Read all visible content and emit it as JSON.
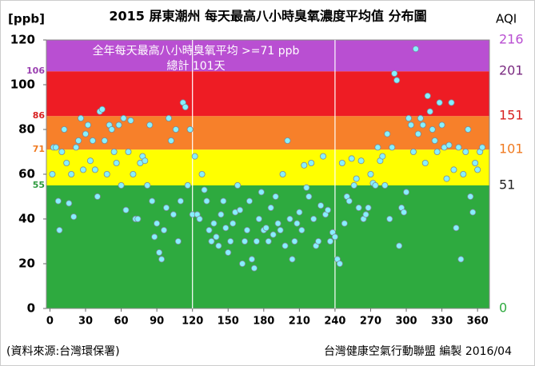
{
  "chart_data": {
    "type": "scatter",
    "title": "2015 屏東潮州 每天最高八小時臭氧濃度平均值 分布圖",
    "y_label": "[ppb]",
    "y2_label": "AQI",
    "annotation": [
      "全年每天最高八小時臭氧平均 >=71 ppb",
      "總計 101天"
    ],
    "source": "(資料來源:台灣環保署)",
    "credit": "台灣健康空氣行動聯盟 編製  2016/04",
    "xlim": [
      -3,
      370
    ],
    "xticks": [
      0,
      30,
      60,
      90,
      120,
      150,
      180,
      210,
      240,
      270,
      300,
      330,
      360
    ],
    "ylim": [
      0,
      120
    ],
    "yticks": [
      0,
      20,
      40,
      60,
      80,
      100,
      120
    ],
    "vlines": [
      120,
      240
    ],
    "bands": [
      {
        "range": [
          0,
          55
        ],
        "color": "#2eaa3f"
      },
      {
        "range": [
          55,
          71
        ],
        "color": "#ffff00"
      },
      {
        "range": [
          71,
          86
        ],
        "color": "#f7802a"
      },
      {
        "range": [
          86,
          106
        ],
        "color": "#ee1c24"
      },
      {
        "range": [
          106,
          120
        ],
        "color": "#b94fd2"
      }
    ],
    "thresholds": [
      {
        "value": 55,
        "color": "#2e9a3f"
      },
      {
        "value": 71,
        "color": "#f07a20"
      },
      {
        "value": 86,
        "color": "#d82020"
      },
      {
        "value": 106,
        "color": "#9a3fb0"
      }
    ],
    "aqi_labels": [
      {
        "value": 0,
        "label": "0",
        "color": "#2eaa3f"
      },
      {
        "value": 55,
        "label": "51",
        "color": "#222222"
      },
      {
        "value": 71,
        "label": "101",
        "color": "#f07a20"
      },
      {
        "value": 86,
        "label": "151",
        "color": "#d82020"
      },
      {
        "value": 106,
        "label": "201",
        "color": "#7a2a80"
      },
      {
        "value": 120,
        "label": "216",
        "color": "#b94fd2"
      }
    ],
    "point_color": "#86f0ff",
    "x": [
      2,
      3,
      5,
      7,
      8,
      10,
      12,
      14,
      16,
      18,
      20,
      22,
      24,
      26,
      28,
      30,
      32,
      34,
      36,
      38,
      40,
      42,
      44,
      46,
      48,
      50,
      52,
      54,
      56,
      58,
      60,
      62,
      64,
      66,
      68,
      70,
      72,
      74,
      76,
      78,
      80,
      82,
      84,
      86,
      88,
      90,
      92,
      94,
      96,
      98,
      100,
      102,
      104,
      106,
      108,
      110,
      112,
      114,
      116,
      118,
      120,
      122,
      124,
      126,
      128,
      130,
      132,
      134,
      136,
      138,
      140,
      142,
      144,
      146,
      148,
      150,
      152,
      154,
      156,
      158,
      160,
      162,
      164,
      166,
      168,
      170,
      172,
      174,
      176,
      178,
      180,
      182,
      184,
      186,
      188,
      190,
      192,
      194,
      196,
      198,
      200,
      202,
      204,
      206,
      208,
      210,
      212,
      214,
      216,
      218,
      220,
      222,
      224,
      226,
      228,
      230,
      232,
      234,
      236,
      238,
      240,
      242,
      244,
      246,
      248,
      250,
      252,
      254,
      256,
      258,
      260,
      262,
      264,
      266,
      268,
      270,
      272,
      274,
      276,
      278,
      280,
      282,
      284,
      286,
      288,
      290,
      292,
      294,
      296,
      298,
      300,
      302,
      304,
      306,
      308,
      310,
      312,
      314,
      316,
      318,
      320,
      322,
      324,
      326,
      328,
      330,
      332,
      334,
      336,
      338,
      340,
      342,
      344,
      346,
      348,
      350,
      352,
      354,
      356,
      358,
      360,
      362,
      364
    ],
    "y": [
      60,
      72,
      72,
      48,
      35,
      70,
      80,
      65,
      47,
      60,
      41,
      72,
      75,
      85,
      62,
      78,
      82,
      66,
      75,
      62,
      50,
      88,
      89,
      75,
      60,
      82,
      80,
      70,
      65,
      82,
      55,
      85,
      44,
      70,
      84,
      60,
      40,
      40,
      65,
      68,
      66,
      55,
      82,
      48,
      32,
      38,
      25,
      22,
      35,
      45,
      85,
      75,
      42,
      80,
      30,
      48,
      92,
      90,
      55,
      80,
      42,
      68,
      42,
      40,
      60,
      53,
      48,
      35,
      30,
      38,
      32,
      28,
      42,
      48,
      36,
      25,
      30,
      38,
      43,
      55,
      44,
      20,
      30,
      35,
      48,
      22,
      18,
      30,
      40,
      52,
      35,
      36,
      30,
      45,
      33,
      50,
      38,
      35,
      60,
      28,
      75,
      40,
      22,
      30,
      38,
      43,
      35,
      64,
      54,
      50,
      65,
      40,
      28,
      30,
      46,
      68,
      42,
      44,
      30,
      34,
      32,
      22,
      20,
      65,
      38,
      50,
      48,
      67,
      55,
      58,
      45,
      66,
      40,
      42,
      45,
      60,
      56,
      55,
      72,
      66,
      68,
      55,
      78,
      40,
      72,
      105,
      102,
      28,
      45,
      43,
      52,
      85,
      82,
      70,
      116,
      78,
      85,
      82,
      65,
      95,
      88,
      80,
      75,
      70,
      92,
      82,
      72,
      58,
      73,
      92,
      62,
      36,
      72,
      22,
      60,
      70,
      80,
      50,
      43,
      65,
      62,
      70,
      72
    ]
  }
}
